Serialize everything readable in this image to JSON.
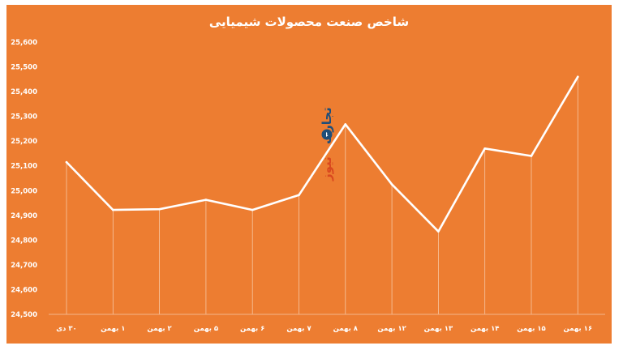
{
  "chart_data": {
    "type": "line",
    "title": "شاخص صنعت محصولات شیمیایی",
    "categories": [
      "۳۰ دی",
      "۱ بهمن",
      "۲ بهمن",
      "۵ بهمن",
      "۶ بهمن",
      "۷ بهمن",
      "۸ بهمن",
      "۱۲ بهمن",
      "۱۳ بهمن",
      "۱۴ بهمن",
      "۱۵ بهمن",
      "۱۶ بهمن"
    ],
    "series": [
      {
        "values": [
          25115,
          24922,
          24925,
          24963,
          24922,
          24982,
          25268,
          25025,
          24835,
          25170,
          25140,
          25460
        ]
      }
    ],
    "ylim": [
      24500,
      25600
    ],
    "yticks": [
      24500,
      24600,
      24700,
      24800,
      24900,
      25000,
      25100,
      25200,
      25300,
      25400,
      25500,
      25600
    ],
    "ytick_labels": [
      "24,500",
      "24,600",
      "24,700",
      "24,800",
      "24,900",
      "25,000",
      "25,100",
      "25,200",
      "25,300",
      "25,400",
      "25,500",
      "25,600"
    ],
    "xlabel": "",
    "ylabel": "",
    "grid": "vertical drop lines",
    "colors": {
      "background": "#ed7d31",
      "line": "#ffffff"
    }
  },
  "watermark": {
    "text_part1": "تجارت",
    "text_part2": "نیوز"
  }
}
